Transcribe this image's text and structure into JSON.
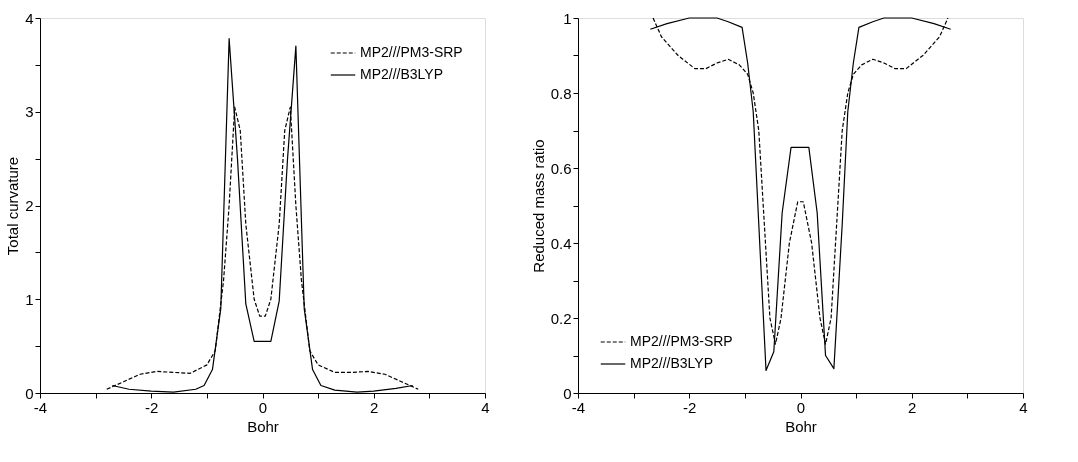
{
  "chart_data": [
    {
      "type": "line",
      "xlabel": "Bohr",
      "ylabel": "Total curvature",
      "xlim": [
        -4,
        4
      ],
      "ylim": [
        0,
        4
      ],
      "xticks": [
        -4,
        {
          "value": -3,
          "label": null
        },
        -2,
        {
          "value": -1,
          "label": null
        },
        0,
        {
          "value": 1,
          "label": null
        },
        2,
        {
          "value": 3,
          "label": null
        },
        4
      ],
      "yticks": [
        0,
        {
          "value": 0.5,
          "label": null
        },
        1,
        {
          "value": 1.5,
          "label": null
        },
        2,
        {
          "value": 2.5,
          "label": null
        },
        3,
        {
          "value": 3.5,
          "label": null
        },
        4
      ],
      "grid": false,
      "legend": "top right",
      "series": [
        {
          "name": "MP2///PM3-SRP",
          "color": "#000000",
          "line_style": "dashed",
          "x": [
            -2.8,
            -2.5,
            -2.2,
            -1.9,
            -1.6,
            -1.3,
            -1.0,
            -0.85,
            -0.7,
            -0.6,
            -0.5,
            -0.4,
            -0.3,
            -0.15,
            -0.05,
            0.05,
            0.15,
            0.3,
            0.4,
            0.5,
            0.6,
            0.7,
            0.85,
            1.0,
            1.3,
            1.6,
            1.9,
            2.2,
            2.5,
            2.8
          ],
          "values": [
            0.04,
            0.12,
            0.2,
            0.23,
            0.22,
            0.21,
            0.3,
            0.45,
            1.2,
            2.0,
            3.05,
            2.8,
            1.8,
            1.0,
            0.82,
            0.82,
            1.0,
            1.8,
            2.8,
            3.05,
            2.0,
            1.2,
            0.45,
            0.3,
            0.22,
            0.22,
            0.23,
            0.2,
            0.12,
            0.04
          ]
        },
        {
          "name": "MP2///B3LYP",
          "color": "#000000",
          "line_style": "solid",
          "x": [
            -2.7,
            -2.4,
            -2.0,
            -1.6,
            -1.2,
            -1.05,
            -0.9,
            -0.75,
            -0.6,
            -0.45,
            -0.3,
            -0.15,
            0.15,
            0.3,
            0.45,
            0.6,
            0.75,
            0.9,
            1.05,
            1.3,
            1.7,
            2.0,
            2.4,
            2.7
          ],
          "values": [
            0.08,
            0.04,
            0.02,
            0.01,
            0.04,
            0.08,
            0.25,
            0.9,
            3.78,
            2.5,
            0.95,
            0.55,
            0.55,
            0.98,
            2.5,
            3.7,
            0.9,
            0.25,
            0.08,
            0.03,
            0.01,
            0.02,
            0.05,
            0.08
          ]
        }
      ]
    },
    {
      "type": "line",
      "xlabel": "Bohr",
      "ylabel": "Reduced mass ratio",
      "xlim": [
        -4,
        4
      ],
      "ylim": [
        0,
        1
      ],
      "xticks": [
        -4,
        {
          "value": -3,
          "label": null
        },
        -2,
        {
          "value": -1,
          "label": null
        },
        0,
        {
          "value": 1,
          "label": null
        },
        2,
        {
          "value": 3,
          "label": null
        },
        4
      ],
      "yticks": [
        0,
        {
          "value": 0.1,
          "label": null
        },
        0.2,
        {
          "value": 0.3,
          "label": null
        },
        0.4,
        {
          "value": 0.5,
          "label": null
        },
        0.6,
        {
          "value": 0.7,
          "label": null
        },
        0.8,
        {
          "value": 0.9,
          "label": null
        },
        1
      ],
      "grid": false,
      "legend": "bottom left",
      "series": [
        {
          "name": "MP2///PM3-SRP",
          "color": "#000000",
          "line_style": "dashed",
          "x": [
            -2.65,
            -2.5,
            -2.2,
            -1.9,
            -1.7,
            -1.5,
            -1.3,
            -1.1,
            -0.95,
            -0.85,
            -0.75,
            -0.65,
            -0.55,
            -0.45,
            -0.35,
            -0.2,
            -0.05,
            0.05,
            0.2,
            0.35,
            0.45,
            0.55,
            0.65,
            0.75,
            0.85,
            0.95,
            1.1,
            1.3,
            1.5,
            1.7,
            1.9,
            2.2,
            2.5,
            2.65
          ],
          "values": [
            1.0,
            0.95,
            0.9,
            0.865,
            0.865,
            0.88,
            0.89,
            0.875,
            0.85,
            0.8,
            0.7,
            0.45,
            0.2,
            0.13,
            0.2,
            0.4,
            0.51,
            0.51,
            0.4,
            0.2,
            0.13,
            0.2,
            0.45,
            0.7,
            0.8,
            0.85,
            0.875,
            0.89,
            0.88,
            0.865,
            0.865,
            0.9,
            0.95,
            1.0
          ]
        },
        {
          "name": "MP2///B3LYP",
          "color": "#000000",
          "line_style": "solid",
          "x": [
            -2.7,
            -2.4,
            -2.0,
            -1.5,
            -1.3,
            -1.05,
            -0.95,
            -0.85,
            -0.75,
            -0.62,
            -0.48,
            -0.33,
            -0.17,
            0.15,
            0.3,
            0.45,
            0.6,
            0.75,
            0.85,
            0.95,
            1.05,
            1.3,
            1.5,
            1.7,
            2.0,
            2.4,
            2.7
          ],
          "values": [
            0.97,
            0.985,
            1.0,
            1.0,
            0.99,
            0.975,
            0.88,
            0.75,
            0.45,
            0.06,
            0.11,
            0.48,
            0.655,
            0.655,
            0.48,
            0.1,
            0.065,
            0.45,
            0.75,
            0.88,
            0.975,
            0.99,
            1.0,
            1.0,
            1.0,
            0.985,
            0.97
          ]
        }
      ]
    }
  ]
}
